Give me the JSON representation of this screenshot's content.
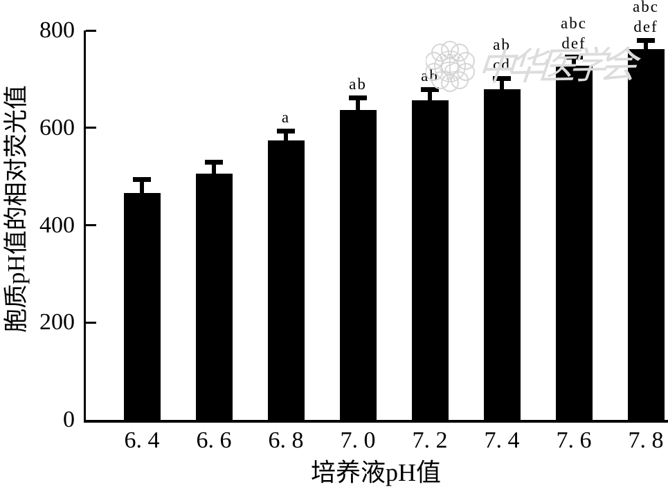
{
  "figure": {
    "background": "#ffffff",
    "watermark": {
      "logo_name": "cma-seal-logo",
      "text": "中华医学会",
      "color": "#dcdcdc"
    }
  },
  "chart_data": {
    "type": "bar",
    "title": "",
    "xlabel": "培养液pH值",
    "ylabel": "胞质pH值的相对荧光值",
    "categories": [
      "6. 4",
      "6. 6",
      "6. 8",
      "7. 0",
      "7. 2",
      "7. 4",
      "7. 6",
      "7. 8"
    ],
    "values": [
      466,
      506,
      574,
      637,
      656,
      679,
      727,
      762
    ],
    "errors_plus": [
      33,
      29,
      25,
      29,
      27,
      27,
      24,
      23
    ],
    "sig_labels": [
      [],
      [],
      [
        "a"
      ],
      [
        "ab"
      ],
      [
        "ab"
      ],
      [
        "ab",
        "cd"
      ],
      [
        "abc",
        "def"
      ],
      [
        "abc",
        "def"
      ]
    ],
    "ylim": [
      0,
      800
    ],
    "yticks": [
      0,
      200,
      400,
      600,
      800
    ],
    "bar_color": "#000000",
    "axis_color": "#000000",
    "grid": false,
    "legend": null,
    "error_bar_direction": "up"
  }
}
